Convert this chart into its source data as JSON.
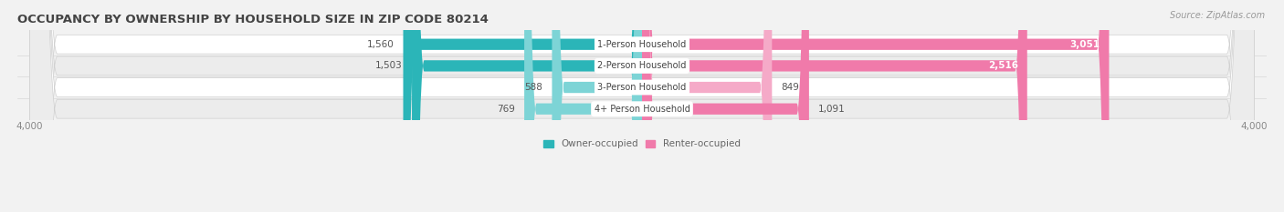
{
  "title": "OCCUPANCY BY OWNERSHIP BY HOUSEHOLD SIZE IN ZIP CODE 80214",
  "source": "Source: ZipAtlas.com",
  "categories": [
    "1-Person Household",
    "2-Person Household",
    "3-Person Household",
    "4+ Person Household"
  ],
  "owner_values": [
    1560,
    1503,
    588,
    769
  ],
  "renter_values": [
    3051,
    2516,
    849,
    1091
  ],
  "x_max": 4000,
  "owner_color_dark": "#2bb5b8",
  "owner_color_light": "#7dd4d6",
  "renter_color_dark": "#f07aaa",
  "renter_color_light": "#f5aac8",
  "background_color": "#f2f2f2",
  "row_bg_colors": [
    "#ffffff",
    "#ececec",
    "#ffffff",
    "#ececec"
  ],
  "legend_owner": "Owner-occupied",
  "legend_renter": "Renter-occupied",
  "title_fontsize": 9.5,
  "source_fontsize": 7,
  "label_fontsize": 7.5,
  "bar_label_fontsize": 7,
  "axis_label_fontsize": 7.5,
  "value_label_fontsize": 7.5
}
